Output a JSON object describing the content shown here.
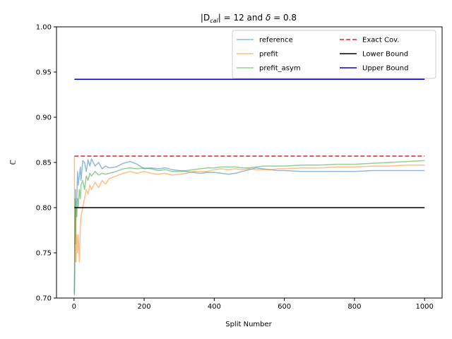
{
  "chart_data": {
    "type": "line",
    "title_prefix": "|D",
    "title_sub": "cal",
    "title_mid": "| = 12 and ",
    "title_delta": "δ",
    "title_suffix": " = 0.8",
    "xlabel": "Split Number",
    "ylabel": "ℂ̅",
    "xlim": [
      -50,
      1050
    ],
    "ylim": [
      0.7,
      1.0
    ],
    "xticks": [
      0,
      200,
      400,
      600,
      800,
      1000
    ],
    "xtick_labels": [
      "0",
      "200",
      "400",
      "600",
      "800",
      "1000"
    ],
    "yticks": [
      0.7,
      0.75,
      0.8,
      0.85,
      0.9,
      0.95,
      1.0
    ],
    "ytick_labels": [
      "0.70",
      "0.75",
      "0.80",
      "0.85",
      "0.90",
      "0.95",
      "1.00"
    ],
    "grid": false,
    "legend_position": "top-right",
    "legend_columns": 2,
    "series": [
      {
        "name": "reference",
        "color": "#1f77b4",
        "alpha": 0.5,
        "style": "solid",
        "x": [
          1,
          2,
          3,
          4,
          5,
          6,
          8,
          10,
          12,
          15,
          18,
          20,
          25,
          30,
          35,
          40,
          45,
          50,
          60,
          70,
          80,
          90,
          100,
          120,
          140,
          160,
          180,
          200,
          220,
          240,
          260,
          280,
          300,
          320,
          340,
          360,
          380,
          400,
          420,
          440,
          460,
          480,
          500,
          520,
          540,
          560,
          580,
          600,
          650,
          700,
          750,
          800,
          850,
          900,
          950,
          1000
        ],
        "y": [
          0.703,
          0.76,
          0.8,
          0.82,
          0.79,
          0.8,
          0.81,
          0.84,
          0.825,
          0.835,
          0.845,
          0.83,
          0.852,
          0.85,
          0.84,
          0.853,
          0.846,
          0.854,
          0.846,
          0.85,
          0.843,
          0.846,
          0.844,
          0.845,
          0.849,
          0.851,
          0.848,
          0.843,
          0.844,
          0.843,
          0.844,
          0.842,
          0.841,
          0.84,
          0.839,
          0.838,
          0.839,
          0.839,
          0.838,
          0.837,
          0.838,
          0.84,
          0.842,
          0.844,
          0.843,
          0.842,
          0.841,
          0.841,
          0.84,
          0.84,
          0.84,
          0.84,
          0.841,
          0.841,
          0.841,
          0.841
        ]
      },
      {
        "name": "prefit",
        "color": "#ff7f0e",
        "alpha": 0.5,
        "style": "solid",
        "x": [
          1,
          2,
          3,
          4,
          5,
          6,
          8,
          10,
          12,
          15,
          18,
          20,
          25,
          30,
          35,
          40,
          45,
          50,
          60,
          70,
          80,
          90,
          100,
          120,
          140,
          160,
          180,
          200,
          220,
          240,
          260,
          280,
          300,
          320,
          340,
          360,
          380,
          400,
          420,
          440,
          460,
          480,
          500,
          520,
          540,
          560,
          580,
          600,
          650,
          700,
          750,
          800,
          850,
          900,
          950,
          1000
        ],
        "y": [
          0.857,
          0.76,
          0.75,
          0.74,
          0.8,
          0.74,
          0.77,
          0.75,
          0.77,
          0.74,
          0.78,
          0.79,
          0.8,
          0.81,
          0.82,
          0.815,
          0.825,
          0.82,
          0.828,
          0.822,
          0.83,
          0.826,
          0.832,
          0.835,
          0.838,
          0.84,
          0.838,
          0.84,
          0.838,
          0.837,
          0.838,
          0.836,
          0.837,
          0.838,
          0.84,
          0.84,
          0.84,
          0.842,
          0.843,
          0.842,
          0.843,
          0.842,
          0.843,
          0.842,
          0.842,
          0.842,
          0.843,
          0.843,
          0.844,
          0.844,
          0.845,
          0.845,
          0.846,
          0.846,
          0.847,
          0.847
        ]
      },
      {
        "name": "prefit_asym",
        "color": "#2ca02c",
        "alpha": 0.5,
        "style": "solid",
        "x": [
          1,
          2,
          3,
          4,
          5,
          6,
          8,
          10,
          12,
          15,
          18,
          20,
          25,
          30,
          35,
          40,
          45,
          50,
          60,
          70,
          80,
          90,
          100,
          120,
          140,
          160,
          180,
          200,
          220,
          240,
          260,
          280,
          300,
          320,
          340,
          360,
          380,
          400,
          420,
          440,
          460,
          480,
          500,
          520,
          540,
          560,
          580,
          600,
          650,
          700,
          750,
          800,
          850,
          900,
          950,
          1000
        ],
        "y": [
          0.705,
          0.73,
          0.81,
          0.76,
          0.78,
          0.8,
          0.79,
          0.81,
          0.8,
          0.82,
          0.81,
          0.825,
          0.83,
          0.82,
          0.835,
          0.83,
          0.838,
          0.835,
          0.84,
          0.836,
          0.838,
          0.837,
          0.838,
          0.84,
          0.843,
          0.844,
          0.843,
          0.844,
          0.843,
          0.841,
          0.842,
          0.84,
          0.84,
          0.841,
          0.842,
          0.843,
          0.844,
          0.844,
          0.845,
          0.845,
          0.845,
          0.844,
          0.844,
          0.845,
          0.846,
          0.846,
          0.846,
          0.846,
          0.847,
          0.847,
          0.848,
          0.848,
          0.849,
          0.85,
          0.851,
          0.852
        ]
      },
      {
        "name": "Exact Cov.",
        "color": "#d62728",
        "alpha": 1,
        "style": "dashed",
        "x": [
          1,
          1000
        ],
        "y": [
          0.857,
          0.857
        ]
      },
      {
        "name": "Lower Bound",
        "color": "#000000",
        "alpha": 1,
        "style": "solid",
        "x": [
          1,
          1000
        ],
        "y": [
          0.8,
          0.8
        ]
      },
      {
        "name": "Upper Bound",
        "color": "#0000cc",
        "alpha": 1,
        "style": "solid",
        "x": [
          1,
          1000
        ],
        "y": [
          0.942,
          0.942
        ]
      }
    ]
  }
}
